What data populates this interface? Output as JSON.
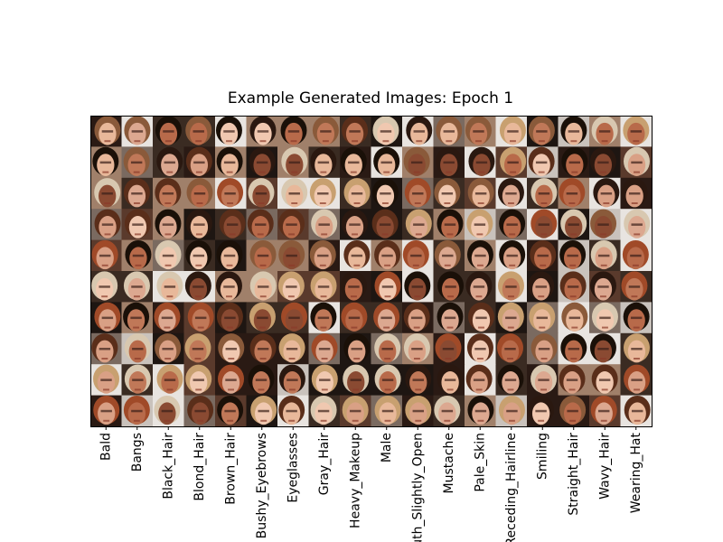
{
  "figure": {
    "title": "Example Generated Images: Epoch 1",
    "columns": [
      "Bald",
      "Bangs",
      "Black_Hair",
      "Blond_Hair",
      "Brown_Hair",
      "Bushy_Eyebrows",
      "Eyeglasses",
      "Gray_Hair",
      "Heavy_Makeup",
      "Male",
      "Mouth_Slightly_Open",
      "Mustache",
      "Pale_Skin",
      "Receding_Hairline",
      "Smiling",
      "Straight_Hair",
      "Wavy_Hair",
      "Wearing_Hat"
    ]
  }
}
